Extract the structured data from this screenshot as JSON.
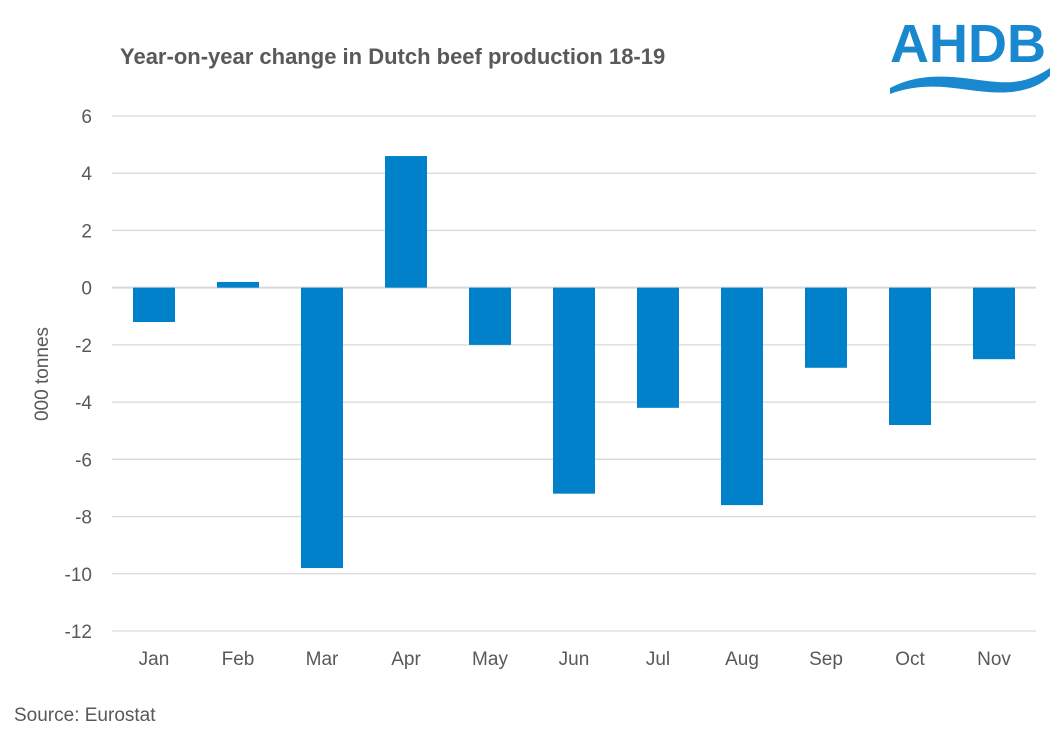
{
  "chart_data": {
    "type": "bar",
    "title": "Year-on-year change in Dutch beef production 18-19",
    "xlabel": "",
    "ylabel": "000 tonnes",
    "categories": [
      "Jan",
      "Feb",
      "Mar",
      "Apr",
      "May",
      "Jun",
      "Jul",
      "Aug",
      "Sep",
      "Oct",
      "Nov"
    ],
    "values": [
      -1.2,
      0.2,
      -9.8,
      4.6,
      -2.0,
      -7.2,
      -4.2,
      -7.6,
      -2.8,
      -4.8,
      -2.5
    ],
    "ylim": [
      -12,
      6
    ],
    "yticks": [
      6,
      4,
      2,
      0,
      -2,
      -4,
      -6,
      -8,
      -10,
      -12
    ],
    "grid": true,
    "bar_color": "#0081C9",
    "grid_color": "#D9D9D9"
  },
  "source": "Source: Eurostat",
  "logo": {
    "text": "AHDB",
    "color": "#1A88CF"
  }
}
